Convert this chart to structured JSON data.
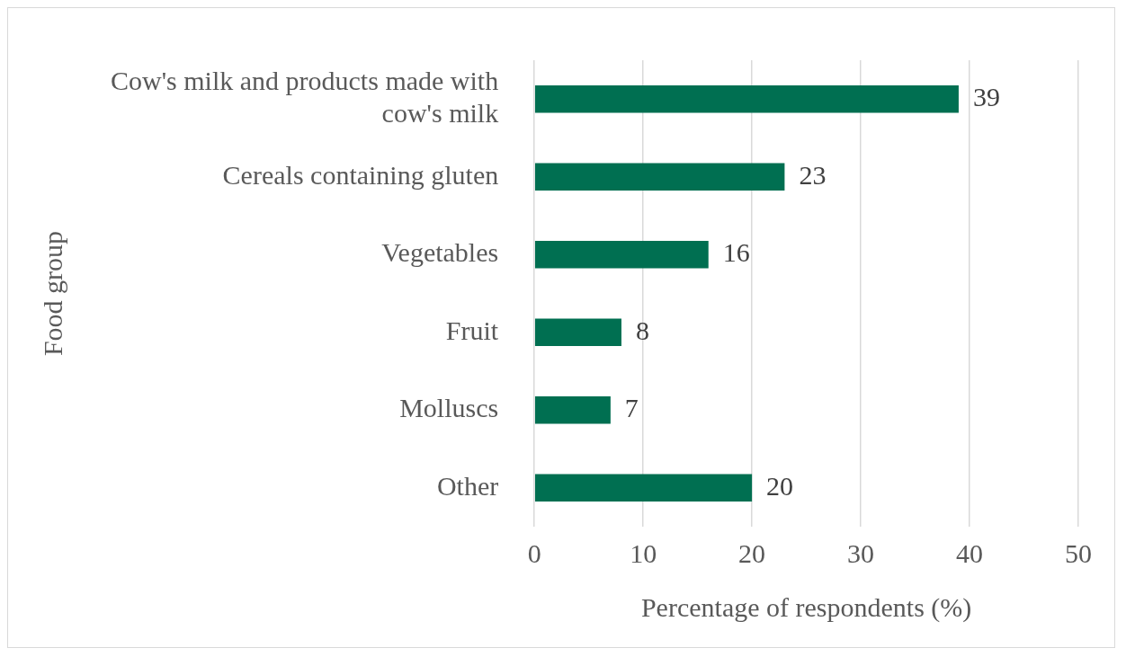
{
  "chart_data": {
    "type": "bar",
    "orientation": "horizontal",
    "xlabel": "Percentage of respondents (%)",
    "ylabel": "Food group",
    "categories": [
      "Cow's milk and products made with cow's milk",
      "Cereals containing gluten",
      "Vegetables",
      "Fruit",
      "Molluscs",
      "Other"
    ],
    "values": [
      39,
      23,
      16,
      8,
      7,
      20
    ],
    "color": "#006f51",
    "xlim": [
      0,
      50
    ],
    "xticks": [
      0,
      10,
      20,
      30,
      40,
      50
    ],
    "grid": "x",
    "data_labels": true,
    "legend": false
  }
}
